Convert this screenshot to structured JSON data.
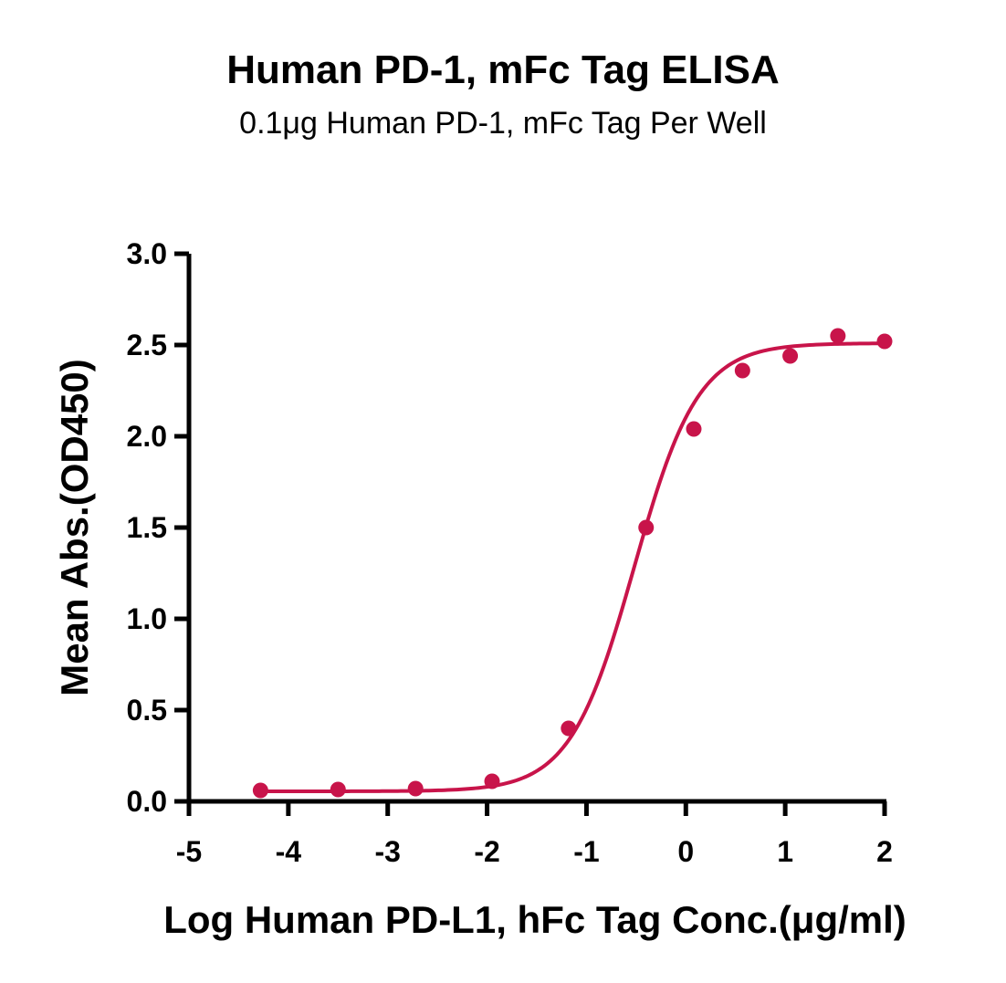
{
  "chart_data": {
    "type": "scatter",
    "title": "Human PD-1, mFc Tag ELISA",
    "subtitle": "0.1μg Human PD-1, mFc Tag Per Well",
    "xlabel": "Log Human PD-L1, hFc Tag Conc.(μg/ml)",
    "ylabel": "Mean Abs.(OD450)",
    "xlim": [
      -5,
      2
    ],
    "ylim": [
      0,
      3
    ],
    "xticks": [
      "-5",
      "-4",
      "-3",
      "-2",
      "-1",
      "0",
      "1",
      "2"
    ],
    "yticks": [
      "0.0",
      "0.5",
      "1.0",
      "1.5",
      "2.0",
      "2.5",
      "3.0"
    ],
    "grid": false,
    "color": "#c8144a",
    "series": [
      {
        "x": [
          -4.28,
          -3.5,
          -2.72,
          -1.95,
          -1.18,
          -0.4,
          0.08,
          0.57,
          1.05,
          1.53,
          2.0
        ],
        "y": [
          0.06,
          0.065,
          0.07,
          0.11,
          0.4,
          1.5,
          2.04,
          2.36,
          2.44,
          2.55,
          2.52
        ]
      }
    ],
    "fit": {
      "bottom": 0.055,
      "top": 2.51,
      "logEC50": -0.52,
      "hill": 1.35
    }
  }
}
